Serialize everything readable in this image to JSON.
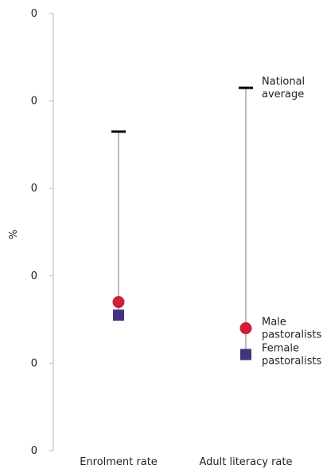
{
  "chart_data": {
    "type": "range_dot",
    "ylabel": "%",
    "y_tick_labels": [
      "0",
      "0",
      "0",
      "0",
      "0",
      "0"
    ],
    "ylim": [
      0,
      100
    ],
    "categories": [
      "Enrolment rate",
      "Adult literacy rate"
    ],
    "series": [
      {
        "name": "National average",
        "marker": "dash",
        "color": "#000000",
        "values": [
          73,
          83
        ]
      },
      {
        "name": "Male pastoralists",
        "marker": "circle",
        "color": "#cc2136",
        "values": [
          34,
          28
        ]
      },
      {
        "name": "Female pastoralists",
        "marker": "square",
        "color": "#46337e",
        "values": [
          31,
          22
        ]
      }
    ],
    "legend": [
      {
        "label_lines": [
          "National",
          "average"
        ],
        "series_index": 0
      },
      {
        "label_lines": [
          "Male",
          "pastoralists"
        ],
        "series_index": 1
      },
      {
        "label_lines": [
          "Female",
          "pastoralists"
        ],
        "series_index": 2
      }
    ],
    "legend_placement": "right, beside the last category",
    "grid": false,
    "colors": {
      "axis": "#bbbbbb",
      "range_line": "#bbbbbb",
      "text": "#222222"
    }
  }
}
